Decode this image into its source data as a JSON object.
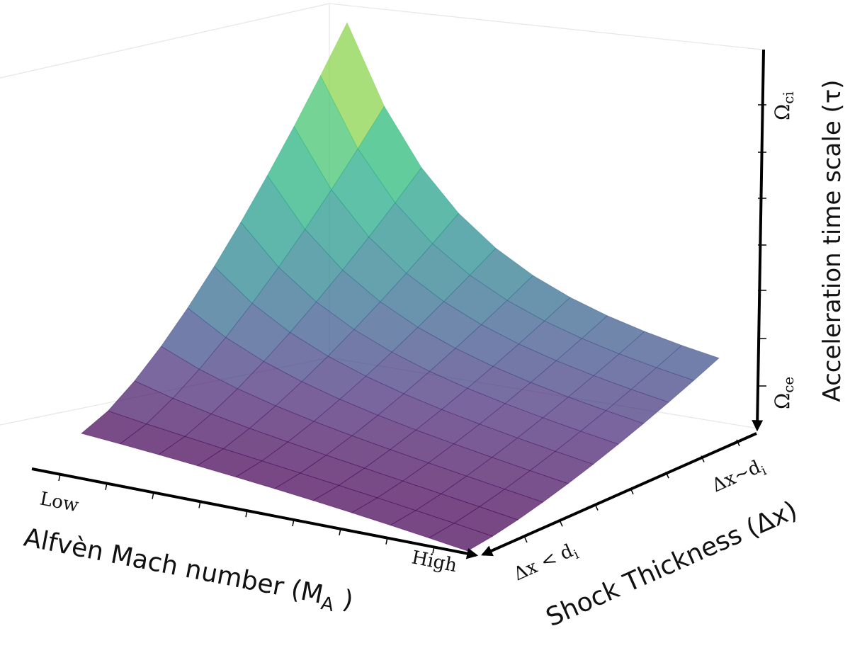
{
  "x_axis": {
    "label": {
      "main": "Alfvèn Mach number (M",
      "sub": "A",
      "end": " )"
    },
    "ticks": [
      "Low",
      "High"
    ]
  },
  "depth_axis": {
    "label": "Shock Thickness (Δx)",
    "ticks": [
      {
        "main": "Δx < d",
        "sub": "i"
      },
      {
        "main": "Δx~d",
        "sub": "i"
      }
    ]
  },
  "z_axis": {
    "label": "Acceleration time scale (τ)",
    "ticks": [
      {
        "main": "Ω",
        "sub": "ce"
      },
      {
        "main": "Ω",
        "sub": "ci"
      }
    ]
  }
}
